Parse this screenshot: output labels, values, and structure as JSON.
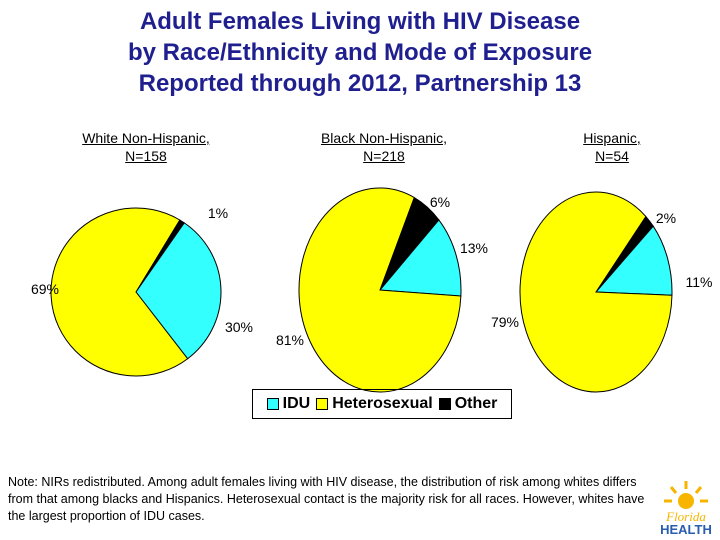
{
  "title": {
    "line1": "Adult Females Living with HIV Disease",
    "line2": "by Race/Ethnicity and Mode of Exposure",
    "line3": "Reported through 2012, Partnership 13"
  },
  "colors": {
    "title": "#1f1f8f",
    "idu": "#33ffff",
    "heterosexual": "#ffff00",
    "other": "#000000"
  },
  "chart_data": [
    {
      "type": "pie",
      "title_line1": "White Non-Hispanic,",
      "title_line2": "N=158",
      "labels": [
        "IDU",
        "Heterosexual",
        "Other"
      ],
      "values": [
        30,
        69,
        1
      ],
      "value_labels": [
        "30%",
        "69%",
        "1%"
      ]
    },
    {
      "type": "pie",
      "title_line1": "Black Non-Hispanic,",
      "title_line2": "N=218",
      "labels": [
        "IDU",
        "Heterosexual",
        "Other"
      ],
      "values": [
        13,
        81,
        6
      ],
      "value_labels": [
        "13%",
        "81%",
        "6%"
      ]
    },
    {
      "type": "pie",
      "title_line1": "Hispanic,",
      "title_line2": "N=54",
      "labels": [
        "IDU",
        "Heterosexual",
        "Other"
      ],
      "values": [
        11,
        79,
        2
      ],
      "value_labels": [
        "11%",
        "79%",
        "2%"
      ]
    }
  ],
  "legend": {
    "items": [
      "IDU",
      "Heterosexual",
      "Other"
    ]
  },
  "note": "Note: NIRs redistributed.  Among adult females living with HIV disease, the distribution of risk among whites differs from that among blacks and Hispanics.  Heterosexual contact is the majority risk for all races.  However, whites have the largest proportion of IDU cases.",
  "logo": {
    "line1": "Florida",
    "line2": "HEALTH"
  }
}
